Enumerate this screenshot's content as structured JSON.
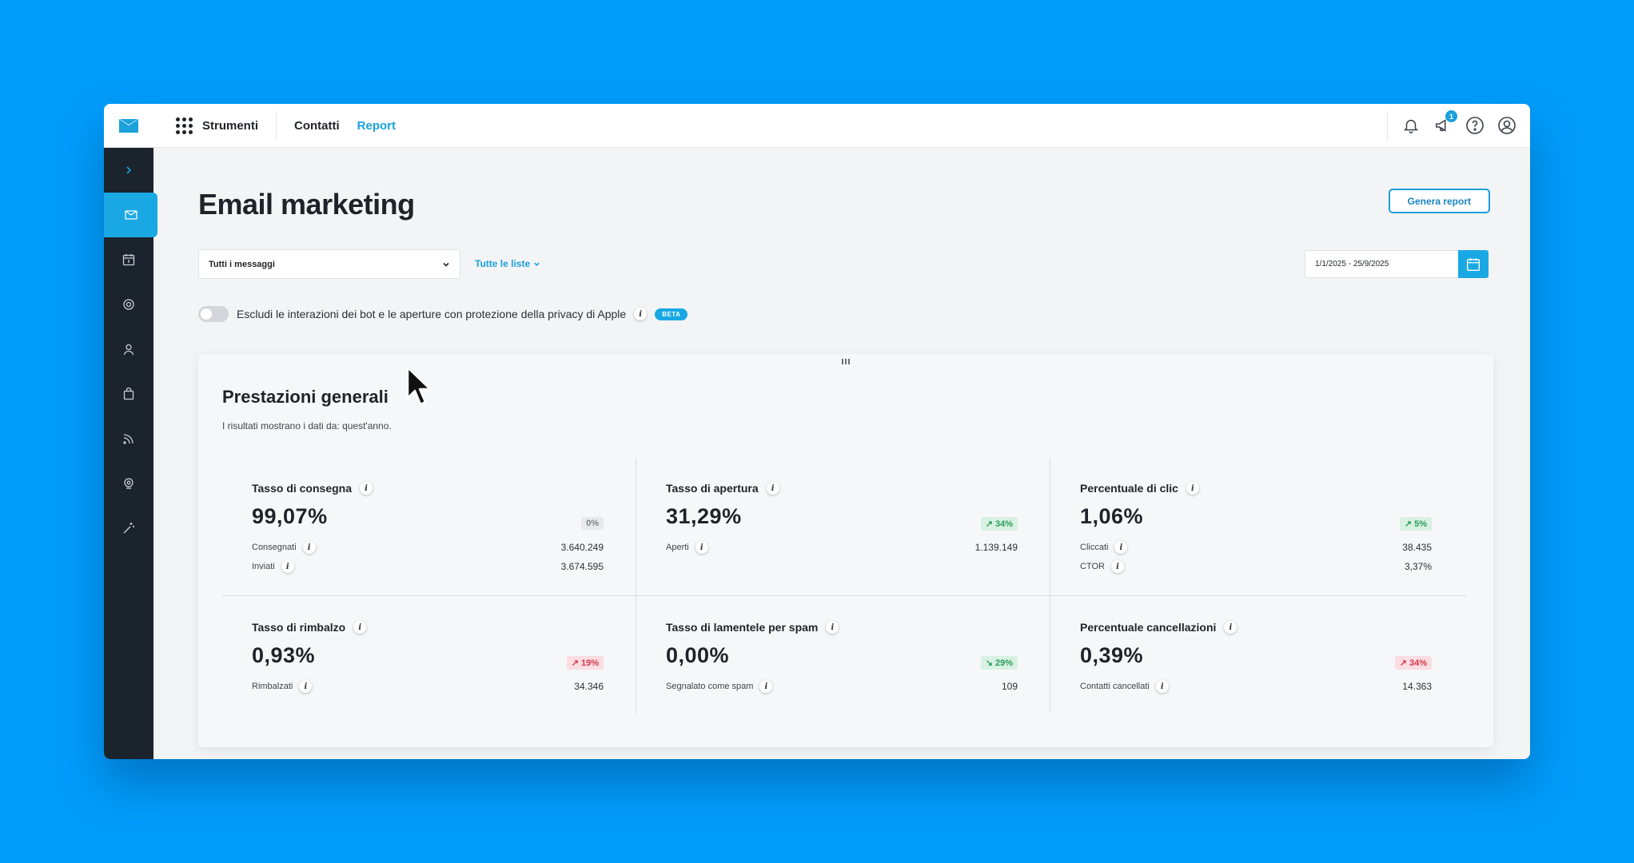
{
  "topbar": {
    "tools_label": "Strumenti",
    "nav": [
      "Contatti",
      "Report"
    ],
    "active_nav": "Report",
    "notifications_badge": "1"
  },
  "page": {
    "title": "Email marketing",
    "generate_report_label": "Genera report"
  },
  "filters": {
    "messages_select": "Tutti i messaggi",
    "lists_link": "Tutte le liste",
    "date_range": "1/1/2025 - 25/9/2025"
  },
  "privacy_toggle": {
    "label": "Escludi le interazioni dei bot e le aperture con protezione della privacy di Apple",
    "badge": "BETA",
    "enabled": false
  },
  "performance": {
    "title": "Prestazioni generali",
    "subtitle": "I risultati mostrano i dati da: quest'anno.",
    "metrics": [
      {
        "title": "Tasso di consegna",
        "value": "99,07%",
        "trend": "0%",
        "trend_dir": "neutral",
        "rows": [
          {
            "label": "Consegnati",
            "value": "3.640.249"
          },
          {
            "label": "Inviati",
            "value": "3.674.595"
          }
        ]
      },
      {
        "title": "Tasso di apertura",
        "value": "31,29%",
        "trend": "34%",
        "trend_dir": "up-good",
        "rows": [
          {
            "label": "Aperti",
            "value": "1.139.149"
          }
        ]
      },
      {
        "title": "Percentuale di clic",
        "value": "1,06%",
        "trend": "5%",
        "trend_dir": "up-good",
        "rows": [
          {
            "label": "Cliccati",
            "value": "38.435"
          },
          {
            "label": "CTOR",
            "value": "3,37%"
          }
        ]
      },
      {
        "title": "Tasso di rimbalzo",
        "value": "0,93%",
        "trend": "19%",
        "trend_dir": "up-bad",
        "rows": [
          {
            "label": "Rimbalzati",
            "value": "34.346"
          }
        ]
      },
      {
        "title": "Tasso di lamentele per spam",
        "value": "0,00%",
        "trend": "29%",
        "trend_dir": "down-good",
        "rows": [
          {
            "label": "Segnalato come spam",
            "value": "109"
          }
        ]
      },
      {
        "title": "Percentuale cancellazioni",
        "value": "0,39%",
        "trend": "34%",
        "trend_dir": "up-bad",
        "rows": [
          {
            "label": "Contatti cancellati",
            "value": "14.363"
          }
        ]
      }
    ]
  },
  "sidebar_icons": [
    "expand-icon",
    "email-icon",
    "calendar-icon",
    "automation-gear-icon",
    "contact-icon",
    "shopping-bag-icon",
    "rss-icon",
    "landing-page-icon",
    "magic-wand-icon"
  ],
  "colors": {
    "accent": "#1ba0dc",
    "sidebar": "#1b232c",
    "background": "#009dfc",
    "positive": "#2a9c5a",
    "negative": "#d6374a"
  }
}
